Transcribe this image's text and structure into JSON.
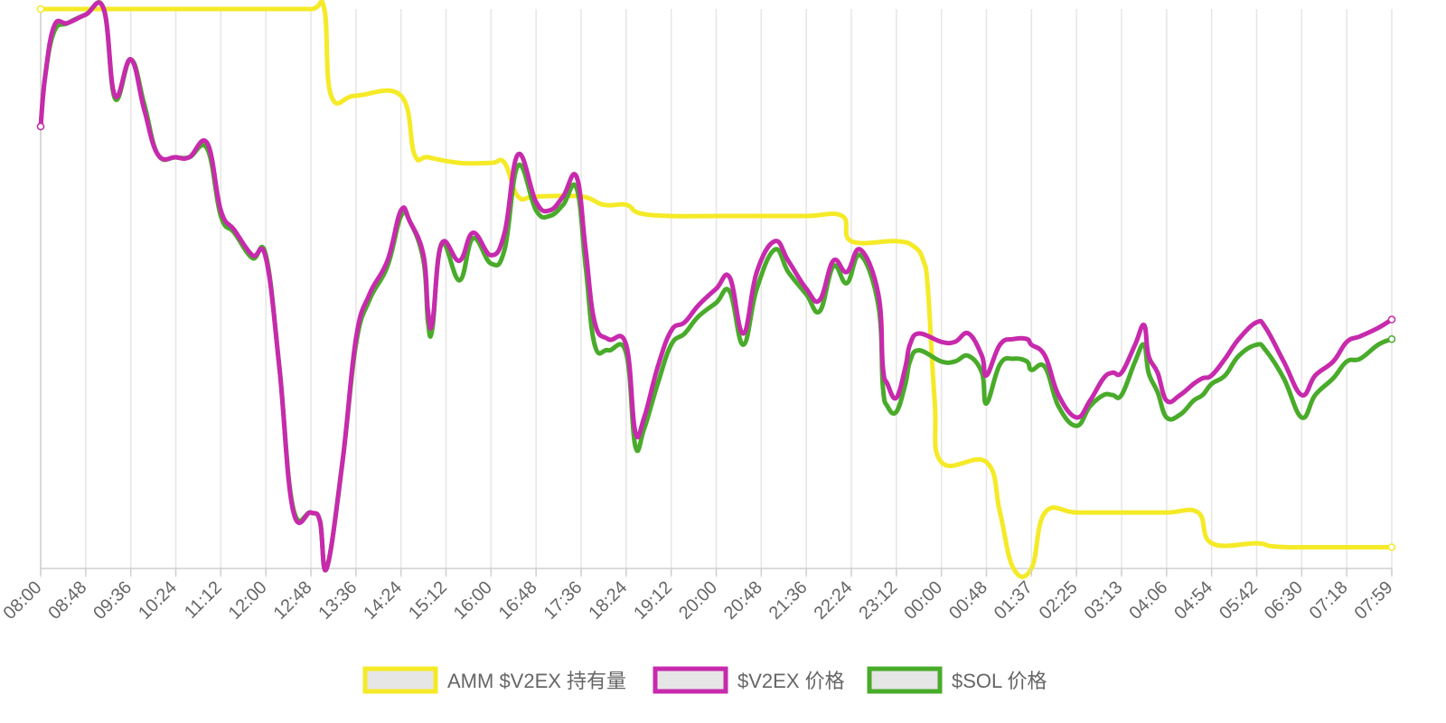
{
  "chart_data": {
    "type": "line",
    "title": "",
    "xlabel": "",
    "ylabel": "",
    "grid": "vertical",
    "legend_position": "bottom",
    "x_tick_labels": [
      "08:00",
      "08:48",
      "09:36",
      "10:24",
      "11:12",
      "12:00",
      "12:48",
      "13:36",
      "14:24",
      "15:12",
      "16:00",
      "16:48",
      "17:36",
      "18:24",
      "19:12",
      "20:00",
      "20:48",
      "21:36",
      "22:24",
      "23:12",
      "00:00",
      "00:48",
      "01:37",
      "02:25",
      "03:13",
      "04:06",
      "04:54",
      "05:42",
      "06:30",
      "07:18",
      "07:59"
    ],
    "y_range": [
      0,
      100
    ],
    "series": [
      {
        "name": "AMM $V2EX 持有量",
        "color": "#f5ea27",
        "points": [
          [
            0,
            100
          ],
          [
            1,
            100
          ],
          [
            2,
            100
          ],
          [
            3,
            100
          ],
          [
            4,
            100
          ],
          [
            5,
            100
          ],
          [
            6,
            100
          ],
          [
            6.3,
            100
          ],
          [
            6.45,
            84.5
          ],
          [
            7,
            84.5
          ],
          [
            8,
            84.5
          ],
          [
            8.3,
            74
          ],
          [
            8.6,
            73.5
          ],
          [
            9.3,
            72.5
          ],
          [
            10,
            72.5
          ],
          [
            10.3,
            72.5
          ],
          [
            10.6,
            66.5
          ],
          [
            11,
            66.5
          ],
          [
            12,
            66.5
          ],
          [
            12.5,
            65
          ],
          [
            13,
            65
          ],
          [
            13.3,
            63.5
          ],
          [
            14,
            63
          ],
          [
            15,
            63
          ],
          [
            16,
            63
          ],
          [
            17,
            63
          ],
          [
            17.8,
            63
          ],
          [
            18,
            58.5
          ],
          [
            19,
            58.5
          ],
          [
            19.4,
            57.5
          ],
          [
            19.6,
            55
          ],
          [
            19.7,
            50
          ],
          [
            19.85,
            30
          ],
          [
            20,
            19
          ],
          [
            21,
            19
          ],
          [
            21.3,
            10
          ],
          [
            21.6,
            0
          ],
          [
            22,
            0
          ],
          [
            22.3,
            10
          ],
          [
            23,
            10
          ],
          [
            24,
            10
          ],
          [
            25,
            10
          ],
          [
            25.7,
            10
          ],
          [
            26,
            4.5
          ],
          [
            27,
            4.5
          ],
          [
            27.3,
            4
          ],
          [
            27.7,
            3.8
          ],
          [
            28,
            3.8
          ],
          [
            29,
            3.8
          ],
          [
            30,
            3.8
          ]
        ]
      },
      {
        "name": "$V2EX 价格",
        "color": "#c72aac",
        "points": [
          [
            0,
            79
          ],
          [
            0.1,
            88
          ],
          [
            0.3,
            97
          ],
          [
            0.6,
            97.5
          ],
          [
            1,
            99
          ],
          [
            1.4,
            100
          ],
          [
            1.65,
            84.5
          ],
          [
            2,
            91
          ],
          [
            2.3,
            82
          ],
          [
            2.6,
            74
          ],
          [
            3,
            73.5
          ],
          [
            3.3,
            73.5
          ],
          [
            3.7,
            76
          ],
          [
            4,
            64
          ],
          [
            4.3,
            60.5
          ],
          [
            4.7,
            56
          ],
          [
            5,
            55.5
          ],
          [
            5.3,
            36
          ],
          [
            5.6,
            10.5
          ],
          [
            6,
            10
          ],
          [
            6.2,
            8.5
          ],
          [
            6.35,
            0
          ],
          [
            6.7,
            19
          ],
          [
            7,
            41
          ],
          [
            7.3,
            49
          ],
          [
            7.7,
            55
          ],
          [
            8,
            64
          ],
          [
            8.2,
            62
          ],
          [
            8.5,
            56
          ],
          [
            8.6,
            46
          ],
          [
            8.7,
            44
          ],
          [
            8.9,
            58
          ],
          [
            9.3,
            55
          ],
          [
            9.6,
            60
          ],
          [
            10,
            56
          ],
          [
            10.3,
            60
          ],
          [
            10.6,
            74
          ],
          [
            11,
            65.5
          ],
          [
            11.3,
            64
          ],
          [
            11.6,
            66.5
          ],
          [
            11.9,
            70
          ],
          [
            12.1,
            57
          ],
          [
            12.3,
            44
          ],
          [
            12.6,
            41
          ],
          [
            13,
            40
          ],
          [
            13.2,
            24.5
          ],
          [
            13.4,
            27
          ],
          [
            13.7,
            36
          ],
          [
            14,
            42.5
          ],
          [
            14.3,
            44
          ],
          [
            14.6,
            47
          ],
          [
            15,
            50
          ],
          [
            15.3,
            52
          ],
          [
            15.6,
            42
          ],
          [
            15.9,
            53
          ],
          [
            16.3,
            58.5
          ],
          [
            16.6,
            55
          ],
          [
            17,
            50
          ],
          [
            17.3,
            48
          ],
          [
            17.6,
            55
          ],
          [
            17.9,
            53
          ],
          [
            18.2,
            57
          ],
          [
            18.6,
            49
          ],
          [
            18.7,
            36
          ],
          [
            18.8,
            33
          ],
          [
            19,
            30.5
          ],
          [
            19.2,
            36
          ],
          [
            19.3,
            40
          ],
          [
            19.5,
            42
          ],
          [
            20,
            40.5
          ],
          [
            20.3,
            40.5
          ],
          [
            20.6,
            42
          ],
          [
            20.9,
            38
          ],
          [
            21,
            34.5
          ],
          [
            21.3,
            40
          ],
          [
            21.6,
            41
          ],
          [
            21.9,
            41
          ],
          [
            22,
            40
          ],
          [
            22.3,
            38
          ],
          [
            22.6,
            31
          ],
          [
            23,
            27
          ],
          [
            23.3,
            30
          ],
          [
            23.6,
            34
          ],
          [
            23.8,
            35
          ],
          [
            24,
            35
          ],
          [
            24.3,
            40
          ],
          [
            24.5,
            43.5
          ],
          [
            24.6,
            38
          ],
          [
            24.8,
            35
          ],
          [
            25,
            30
          ],
          [
            25.3,
            31
          ],
          [
            25.6,
            33
          ],
          [
            25.8,
            34
          ],
          [
            26,
            34.5
          ],
          [
            26.3,
            37.5
          ],
          [
            26.6,
            41
          ],
          [
            27,
            44
          ],
          [
            27.2,
            43
          ],
          [
            27.6,
            37
          ],
          [
            28,
            31
          ],
          [
            28.3,
            34.5
          ],
          [
            28.7,
            37
          ],
          [
            29,
            40.5
          ],
          [
            29.3,
            41.5
          ],
          [
            29.7,
            43
          ],
          [
            30,
            44.5
          ]
        ]
      },
      {
        "name": "$SOL 价格",
        "color": "#49ab2a",
        "points": [
          [
            0,
            79
          ],
          [
            0.1,
            88
          ],
          [
            0.3,
            96
          ],
          [
            0.6,
            97.5
          ],
          [
            1,
            99
          ],
          [
            1.4,
            100
          ],
          [
            1.65,
            84
          ],
          [
            2,
            91
          ],
          [
            2.3,
            83
          ],
          [
            2.6,
            74
          ],
          [
            3,
            73.5
          ],
          [
            3.3,
            73.5
          ],
          [
            3.7,
            75
          ],
          [
            4,
            63
          ],
          [
            4.3,
            60
          ],
          [
            4.7,
            55.5
          ],
          [
            5,
            56
          ],
          [
            5.3,
            36
          ],
          [
            5.6,
            11
          ],
          [
            6,
            10
          ],
          [
            6.2,
            8.5
          ],
          [
            6.35,
            0
          ],
          [
            6.7,
            19
          ],
          [
            7,
            40
          ],
          [
            7.3,
            48
          ],
          [
            7.7,
            54
          ],
          [
            8,
            63
          ],
          [
            8.2,
            62
          ],
          [
            8.5,
            55
          ],
          [
            8.6,
            44
          ],
          [
            8.7,
            43
          ],
          [
            8.9,
            58
          ],
          [
            9.3,
            51.5
          ],
          [
            9.6,
            59
          ],
          [
            10,
            54.5
          ],
          [
            10.3,
            57
          ],
          [
            10.6,
            72
          ],
          [
            11,
            64
          ],
          [
            11.3,
            63
          ],
          [
            11.6,
            65
          ],
          [
            11.9,
            68
          ],
          [
            12.1,
            54
          ],
          [
            12.3,
            40
          ],
          [
            12.6,
            39
          ],
          [
            13,
            38.5
          ],
          [
            13.2,
            22
          ],
          [
            13.4,
            25
          ],
          [
            13.7,
            33
          ],
          [
            14,
            40
          ],
          [
            14.3,
            42
          ],
          [
            14.6,
            45
          ],
          [
            15,
            47.5
          ],
          [
            15.3,
            49.5
          ],
          [
            15.6,
            40
          ],
          [
            15.9,
            50
          ],
          [
            16.3,
            57
          ],
          [
            16.6,
            53
          ],
          [
            17,
            49
          ],
          [
            17.3,
            46
          ],
          [
            17.6,
            54
          ],
          [
            17.9,
            51
          ],
          [
            18.2,
            56
          ],
          [
            18.6,
            47
          ],
          [
            18.7,
            32.5
          ],
          [
            18.8,
            29
          ],
          [
            19,
            28
          ],
          [
            19.2,
            33
          ],
          [
            19.3,
            37
          ],
          [
            19.5,
            39
          ],
          [
            20,
            37
          ],
          [
            20.3,
            37
          ],
          [
            20.6,
            38
          ],
          [
            20.9,
            35
          ],
          [
            21,
            29.5
          ],
          [
            21.3,
            36.5
          ],
          [
            21.6,
            37.5
          ],
          [
            21.9,
            37
          ],
          [
            22,
            35.5
          ],
          [
            22.3,
            36
          ],
          [
            22.6,
            29
          ],
          [
            23,
            25.5
          ],
          [
            23.3,
            29
          ],
          [
            23.6,
            31
          ],
          [
            23.8,
            31
          ],
          [
            24,
            31
          ],
          [
            24.3,
            37
          ],
          [
            24.5,
            40
          ],
          [
            24.6,
            35
          ],
          [
            24.8,
            31.5
          ],
          [
            25,
            27
          ],
          [
            25.3,
            27.5
          ],
          [
            25.6,
            30
          ],
          [
            25.8,
            31
          ],
          [
            26,
            33
          ],
          [
            26.3,
            34.5
          ],
          [
            26.6,
            38
          ],
          [
            27,
            40
          ],
          [
            27.2,
            39
          ],
          [
            27.6,
            34
          ],
          [
            28,
            27
          ],
          [
            28.3,
            31
          ],
          [
            28.7,
            34
          ],
          [
            29,
            37
          ],
          [
            29.3,
            37.5
          ],
          [
            29.7,
            40
          ],
          [
            30,
            41
          ]
        ]
      }
    ]
  }
}
